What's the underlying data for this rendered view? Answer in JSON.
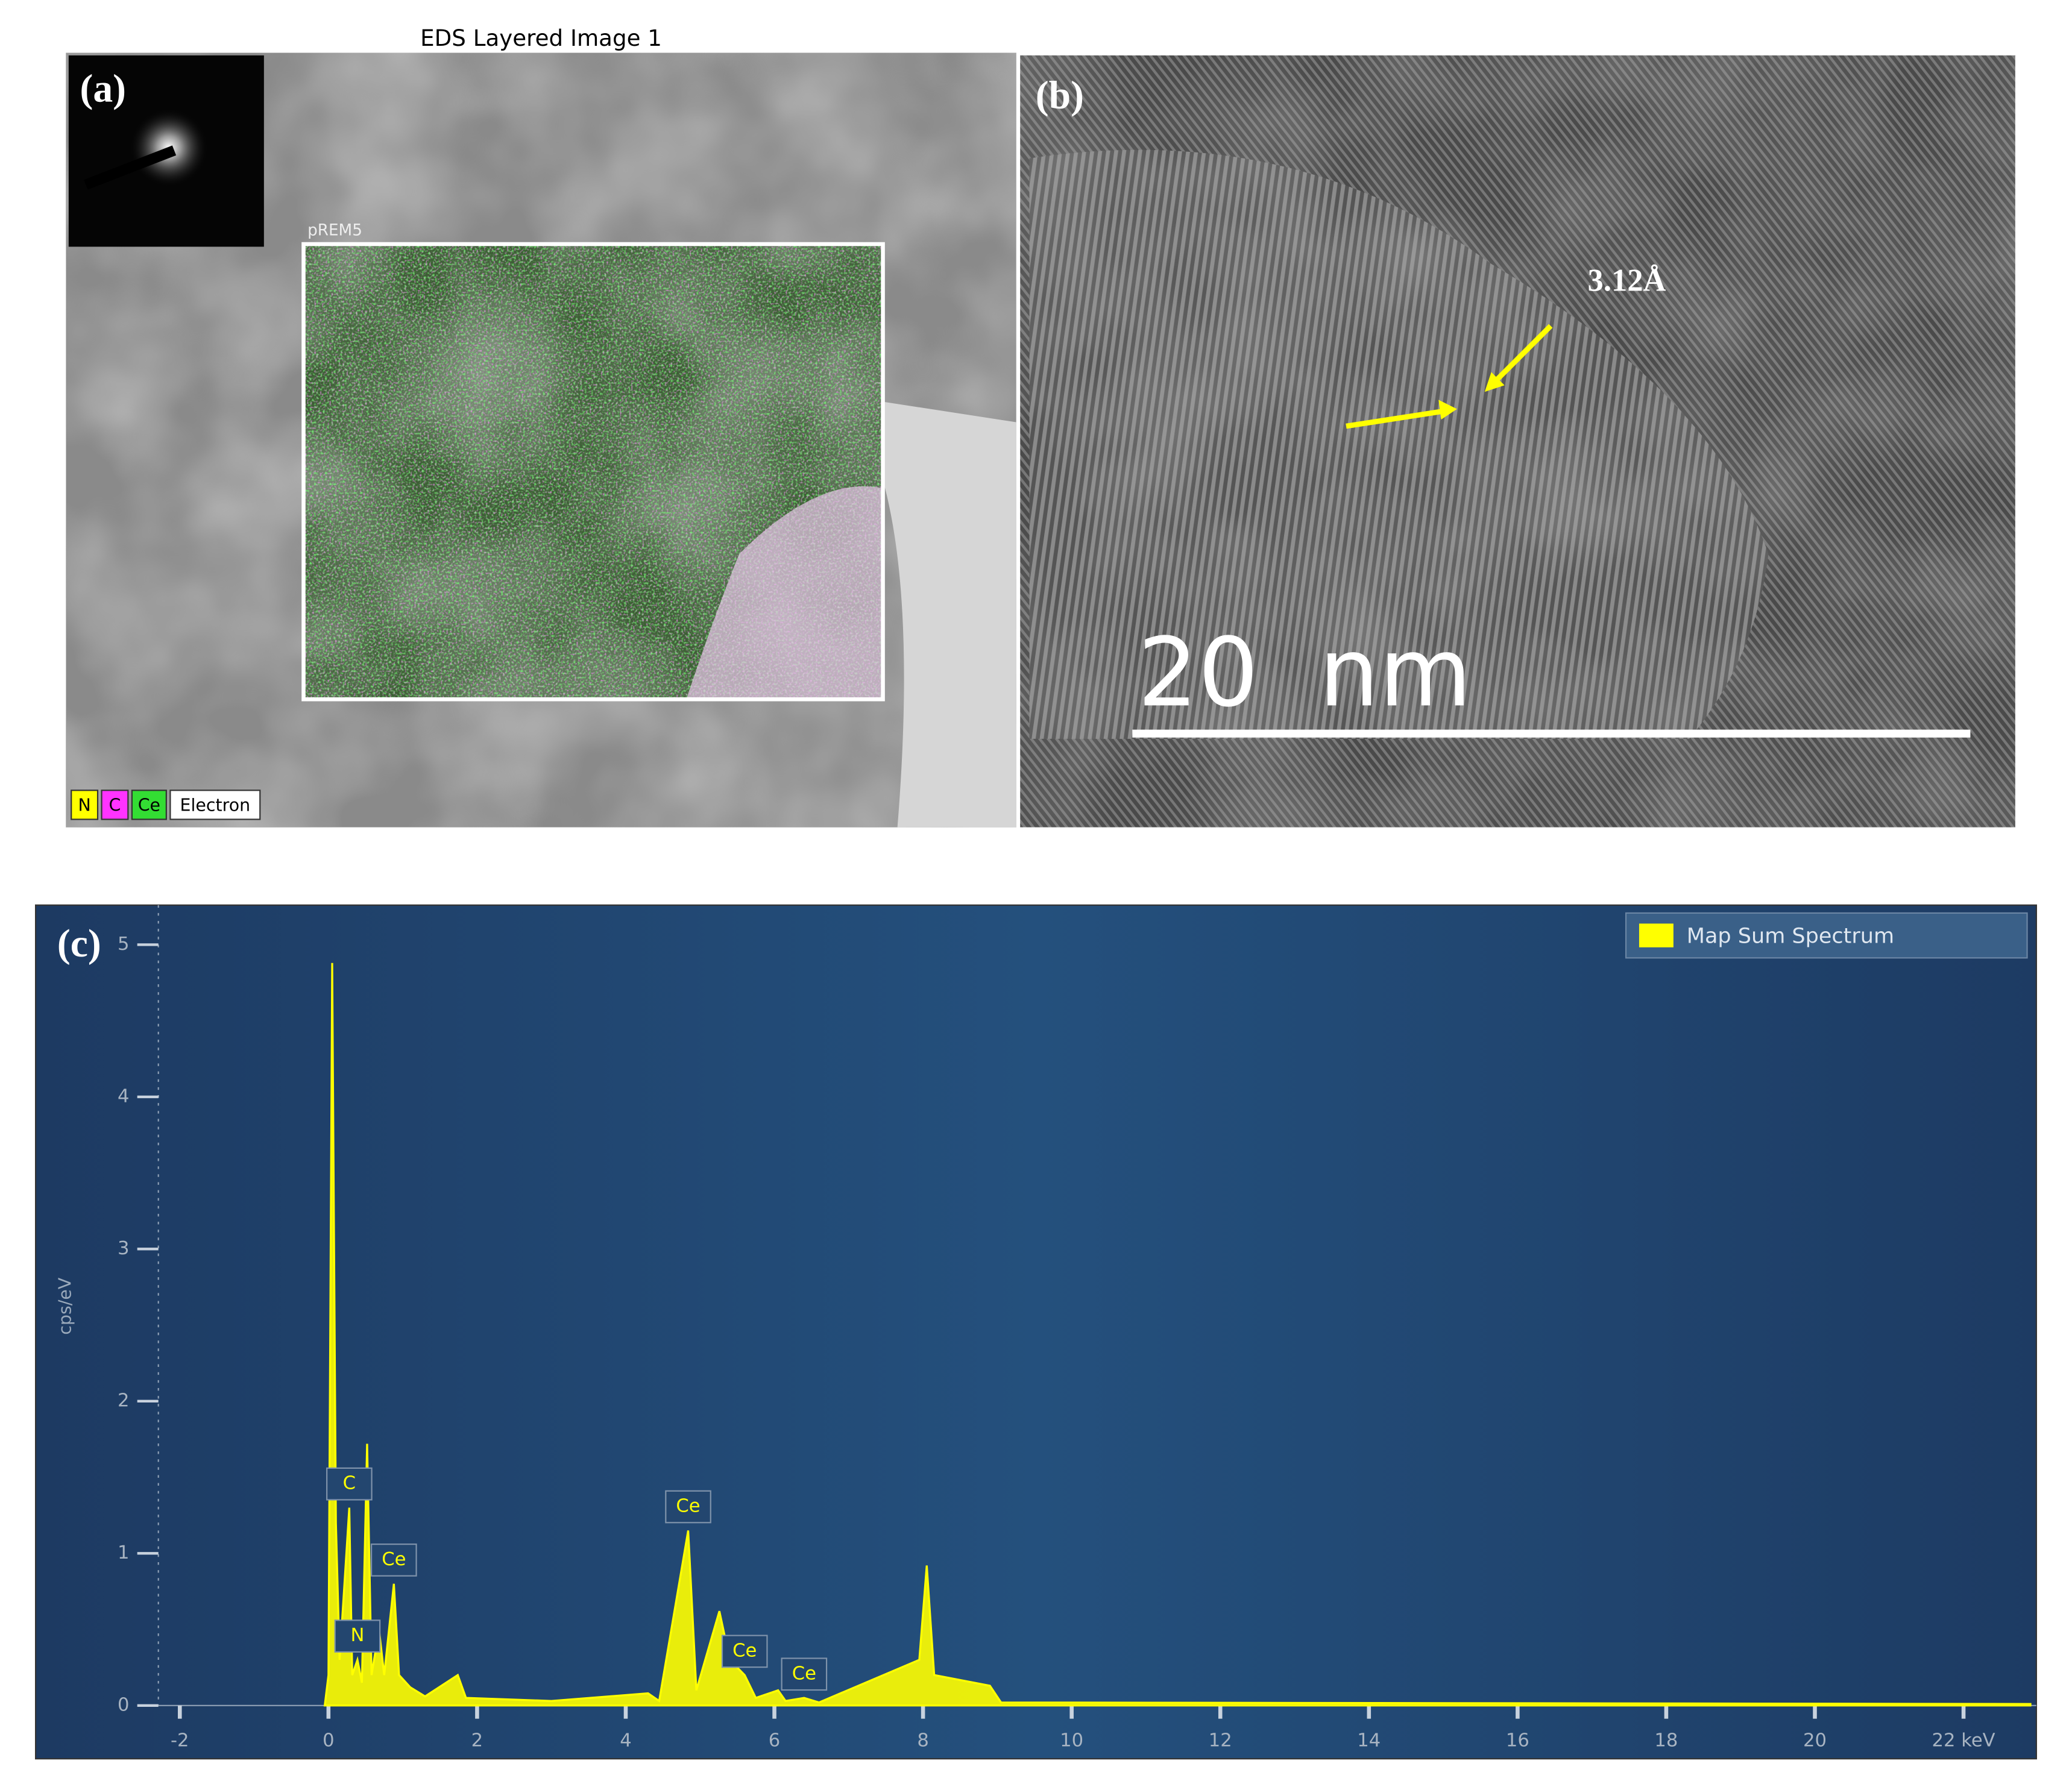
{
  "panel_a": {
    "title": "EDS Layered Image 1",
    "label": "(a)",
    "map_label": "pREM5",
    "legend": [
      "N",
      "C",
      "Ce",
      "Electron"
    ]
  },
  "panel_b": {
    "label": "(b)",
    "spacing": "3.12Å",
    "scale_bar": "20  nm"
  },
  "panel_c_label": "(c)",
  "chart_data": {
    "type": "area",
    "ylabel": "cps/eV",
    "xlim": [
      -3.94,
      22.98
    ],
    "ylim": [
      -0.35,
      5.26
    ],
    "xticks": [
      -2,
      0,
      2,
      4,
      6,
      8,
      10,
      12,
      14,
      16,
      18,
      20,
      {
        "value": 22,
        "label": "22 keV"
      }
    ],
    "yticks": [
      0,
      1,
      2,
      3,
      4,
      5
    ],
    "x": [
      -0.05,
      0,
      0.05,
      0.1,
      0.15,
      0.28,
      0.32,
      0.39,
      0.45,
      0.52,
      0.58,
      0.68,
      0.75,
      0.88,
      0.95,
      1.1,
      1.3,
      1.74,
      1.85,
      3,
      4.3,
      4.45,
      4.84,
      4.95,
      5.26,
      5.4,
      5.6,
      5.75,
      6.05,
      6.15,
      6.4,
      6.6,
      7.95,
      8.05,
      8.15,
      8.9,
      9.05,
      22.9
    ],
    "series": [
      {
        "name": "Map Sum Spectrum",
        "color": "#ffff00",
        "values": [
          0,
          0.2,
          4.88,
          1.2,
          0.3,
          1.3,
          0.2,
          0.3,
          0.15,
          1.72,
          0.2,
          0.5,
          0.2,
          0.8,
          0.2,
          0.12,
          0.06,
          0.2,
          0.05,
          0.03,
          0.08,
          0.03,
          1.15,
          0.1,
          0.62,
          0.3,
          0.2,
          0.05,
          0.1,
          0.03,
          0.05,
          0.02,
          0.3,
          0.92,
          0.2,
          0.13,
          0.02,
          0.01
        ]
      }
    ],
    "peak_labels": [
      {
        "label": "C",
        "x": 0.28
      },
      {
        "label": "N",
        "x": 0.39
      },
      {
        "label": "Ce",
        "x": 0.88
      },
      {
        "label": "Ce",
        "x": 4.84
      },
      {
        "label": "Ce",
        "x": 5.6
      },
      {
        "label": "Ce",
        "x": 6.4
      }
    ],
    "legend": "upper right"
  }
}
